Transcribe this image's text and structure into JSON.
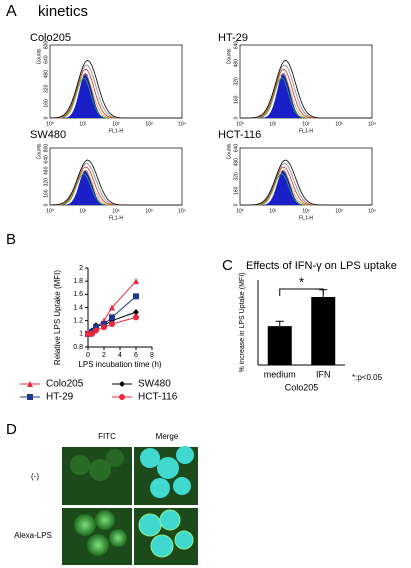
{
  "panel_labels": [
    "A",
    "B",
    "C",
    "D"
  ],
  "kinetics": {
    "title": "kinetics",
    "histograms": [
      {
        "title": "Colo205",
        "xlabel": "FL1-H",
        "ylabel": "Counts",
        "xticks": [
          "10⁰",
          "10¹",
          "10²",
          "10³",
          "10⁴"
        ],
        "yticks": [
          "0",
          "160",
          "320",
          "480",
          "640",
          "800"
        ]
      },
      {
        "title": "HT-29",
        "xlabel": "FL1-H",
        "ylabel": "Counts",
        "xticks": [
          "10⁰",
          "10¹",
          "10²",
          "10³",
          "10⁴"
        ],
        "yticks": [
          "0",
          "160",
          "320",
          "480",
          "640"
        ]
      },
      {
        "title": "SW480",
        "xlabel": "FL1-H",
        "ylabel": "Counts",
        "xticks": [
          "10⁰",
          "10¹",
          "10²",
          "10³",
          "10⁴"
        ],
        "yticks": [
          "0",
          "160",
          "320",
          "480",
          "640",
          "800"
        ]
      },
      {
        "title": "HCT-116",
        "xlabel": "FL1-H",
        "ylabel": "Counts",
        "xticks": [
          "10⁰",
          "10¹",
          "10²",
          "10³",
          "10⁴"
        ],
        "yticks": [
          "0",
          "160",
          "320",
          "480",
          "640"
        ]
      }
    ]
  },
  "chart_data": [
    {
      "type": "line",
      "xlabel": "LPS incubation time (h)",
      "ylabel": "Relative LPS Uptake (MFI)",
      "x": [
        0,
        0.5,
        1,
        2,
        3,
        6
      ],
      "xlim": [
        0,
        8
      ],
      "xticks": [
        0,
        2,
        4,
        6,
        8
      ],
      "ylim": [
        0.8,
        2
      ],
      "yticks": [
        0.8,
        1,
        1.2,
        1.4,
        1.6,
        1.8,
        2
      ],
      "series": [
        {
          "name": "Colo205",
          "color": "#e8283c",
          "marker": "triangle",
          "values": [
            1,
            1.05,
            1.1,
            1.2,
            1.4,
            1.8
          ]
        },
        {
          "name": "SW480",
          "color": "#000000",
          "marker": "diamond",
          "values": [
            1,
            1.05,
            1.13,
            1.13,
            1.2,
            1.33
          ]
        },
        {
          "name": "HT-29",
          "color": "#1f3a8f",
          "marker": "square",
          "values": [
            1,
            1.03,
            1.1,
            1.15,
            1.25,
            1.57
          ]
        },
        {
          "name": "HCT-116",
          "color": "#e8283c",
          "marker": "circle",
          "values": [
            1,
            1,
            1.05,
            1.1,
            1.15,
            1.25
          ]
        }
      ]
    },
    {
      "type": "bar",
      "title": "Effects of IFN-γ on LPS uptake",
      "ylabel": "% increase in LPS Uptake (MFI)",
      "categories": [
        "medium",
        "IFN"
      ],
      "group_label": "Colo205",
      "values": [
        66,
        78
      ],
      "errors": [
        2,
        3
      ],
      "ylim": [
        50,
        85
      ],
      "color": "#000000",
      "annotation": "*",
      "note": "*:p<0.05"
    }
  ],
  "microscopy": {
    "columns": [
      "FITC",
      "Merge"
    ],
    "rows": [
      "(-)",
      "Alexa-LPS"
    ]
  }
}
